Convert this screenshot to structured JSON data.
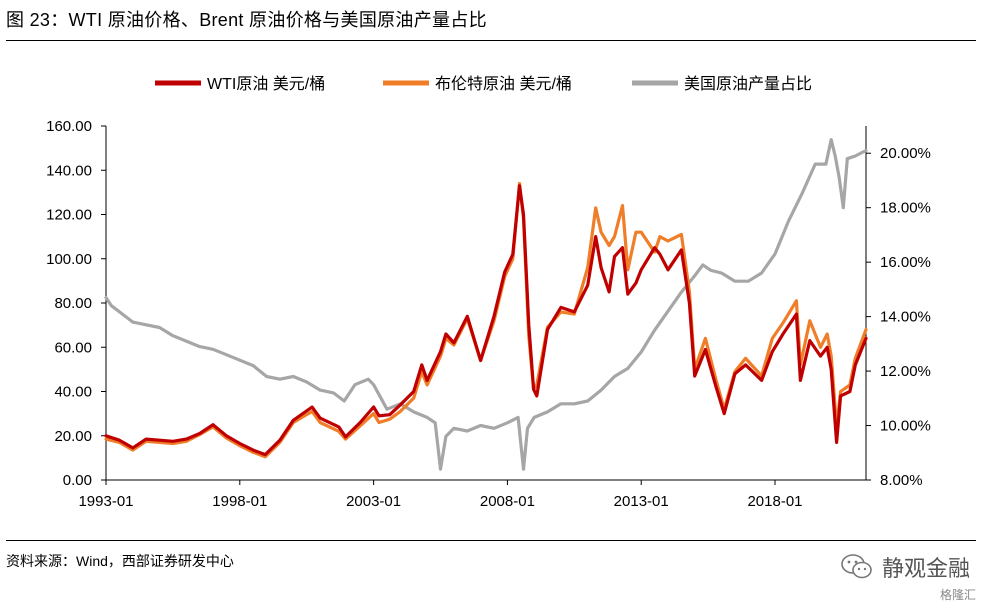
{
  "header": {
    "title": "图 23：WTI 原油价格、Brent 原油价格与美国原油产量占比"
  },
  "footer": {
    "source": "资料来源：Wind，西部证券研发中心",
    "watermark": "静观金融",
    "watermark2": "格隆汇"
  },
  "chart_data": {
    "type": "line",
    "legend_placement": "top",
    "grid": false,
    "x_range": [
      1993.0,
      2021.4
    ],
    "x_ticks": [
      "1993-01",
      "1998-01",
      "2003-01",
      "2008-01",
      "2013-01",
      "2018-01"
    ],
    "y_left": {
      "range": [
        0,
        160
      ],
      "ticks": [
        "0.00",
        "20.00",
        "40.00",
        "60.00",
        "80.00",
        "100.00",
        "120.00",
        "140.00",
        "160.00"
      ]
    },
    "y_right": {
      "range": [
        8,
        21
      ],
      "ticks": [
        "8.00%",
        "10.00%",
        "12.00%",
        "14.00%",
        "16.00%",
        "18.00%",
        "20.00%"
      ]
    },
    "series": [
      {
        "name": "WTI原油 美元/桶",
        "axis": "left",
        "color": "#c00000",
        "points": [
          [
            1993.0,
            20
          ],
          [
            1993.5,
            18
          ],
          [
            1994.0,
            14.5
          ],
          [
            1994.5,
            18.5
          ],
          [
            1995.0,
            18
          ],
          [
            1995.5,
            17.5
          ],
          [
            1996.0,
            18.5
          ],
          [
            1996.5,
            21
          ],
          [
            1997.0,
            25
          ],
          [
            1997.5,
            20
          ],
          [
            1998.0,
            16.5
          ],
          [
            1998.5,
            13.5
          ],
          [
            1998.95,
            11.5
          ],
          [
            1999.5,
            18
          ],
          [
            2000.0,
            27
          ],
          [
            2000.7,
            33
          ],
          [
            2001.0,
            28
          ],
          [
            2001.7,
            24
          ],
          [
            2001.95,
            19.5
          ],
          [
            2002.5,
            26
          ],
          [
            2003.0,
            33
          ],
          [
            2003.2,
            29
          ],
          [
            2003.6,
            29.5
          ],
          [
            2004.0,
            34
          ],
          [
            2004.5,
            40
          ],
          [
            2004.8,
            52
          ],
          [
            2005.0,
            45
          ],
          [
            2005.5,
            58
          ],
          [
            2005.7,
            66
          ],
          [
            2006.0,
            62
          ],
          [
            2006.5,
            74
          ],
          [
            2007.0,
            54
          ],
          [
            2007.5,
            74
          ],
          [
            2007.9,
            94
          ],
          [
            2008.2,
            102
          ],
          [
            2008.45,
            133
          ],
          [
            2008.6,
            120
          ],
          [
            2008.8,
            70
          ],
          [
            2008.98,
            41
          ],
          [
            2009.1,
            38
          ],
          [
            2009.5,
            68
          ],
          [
            2010.0,
            78
          ],
          [
            2010.5,
            76
          ],
          [
            2011.0,
            88
          ],
          [
            2011.3,
            110
          ],
          [
            2011.5,
            96
          ],
          [
            2011.8,
            85
          ],
          [
            2012.0,
            101
          ],
          [
            2012.3,
            105
          ],
          [
            2012.5,
            84
          ],
          [
            2012.8,
            89
          ],
          [
            2013.0,
            95
          ],
          [
            2013.5,
            105
          ],
          [
            2013.7,
            102
          ],
          [
            2014.0,
            95
          ],
          [
            2014.5,
            104
          ],
          [
            2014.8,
            80
          ],
          [
            2015.0,
            47
          ],
          [
            2015.4,
            59
          ],
          [
            2015.8,
            42
          ],
          [
            2016.1,
            30
          ],
          [
            2016.5,
            48
          ],
          [
            2016.9,
            52
          ],
          [
            2017.5,
            45
          ],
          [
            2017.9,
            58
          ],
          [
            2018.3,
            66
          ],
          [
            2018.8,
            75
          ],
          [
            2018.95,
            45
          ],
          [
            2019.3,
            63
          ],
          [
            2019.7,
            56
          ],
          [
            2019.95,
            60
          ],
          [
            2020.1,
            50
          ],
          [
            2020.3,
            17
          ],
          [
            2020.45,
            38
          ],
          [
            2020.8,
            40
          ],
          [
            2021.0,
            52
          ],
          [
            2021.4,
            64
          ]
        ]
      },
      {
        "name": "布伦特原油 美元/桶",
        "axis": "left",
        "color": "#f07d28",
        "points": [
          [
            1993.0,
            18.5
          ],
          [
            1993.5,
            17
          ],
          [
            1994.0,
            13.5
          ],
          [
            1994.5,
            17.5
          ],
          [
            1995.0,
            17
          ],
          [
            1995.5,
            16.5
          ],
          [
            1996.0,
            17.5
          ],
          [
            1996.5,
            20.5
          ],
          [
            1997.0,
            24
          ],
          [
            1997.5,
            19
          ],
          [
            1998.0,
            15.5
          ],
          [
            1998.5,
            12.5
          ],
          [
            1998.95,
            10.5
          ],
          [
            1999.5,
            17
          ],
          [
            2000.0,
            26
          ],
          [
            2000.7,
            31
          ],
          [
            2001.0,
            26
          ],
          [
            2001.7,
            22
          ],
          [
            2001.95,
            18.5
          ],
          [
            2002.5,
            24.5
          ],
          [
            2003.0,
            30
          ],
          [
            2003.2,
            26
          ],
          [
            2003.6,
            27.5
          ],
          [
            2004.0,
            31
          ],
          [
            2004.5,
            37
          ],
          [
            2004.8,
            49
          ],
          [
            2005.0,
            43
          ],
          [
            2005.5,
            56
          ],
          [
            2005.7,
            64
          ],
          [
            2006.0,
            61
          ],
          [
            2006.5,
            73
          ],
          [
            2007.0,
            54
          ],
          [
            2007.5,
            72
          ],
          [
            2007.9,
            92
          ],
          [
            2008.2,
            100
          ],
          [
            2008.45,
            134
          ],
          [
            2008.6,
            118
          ],
          [
            2008.8,
            65
          ],
          [
            2008.98,
            41
          ],
          [
            2009.1,
            43
          ],
          [
            2009.5,
            69
          ],
          [
            2010.0,
            76
          ],
          [
            2010.5,
            75
          ],
          [
            2011.0,
            96
          ],
          [
            2011.3,
            123
          ],
          [
            2011.5,
            112
          ],
          [
            2011.8,
            106
          ],
          [
            2012.0,
            110
          ],
          [
            2012.3,
            124
          ],
          [
            2012.5,
            95
          ],
          [
            2012.8,
            112
          ],
          [
            2013.0,
            112
          ],
          [
            2013.5,
            103
          ],
          [
            2013.7,
            110
          ],
          [
            2014.0,
            108
          ],
          [
            2014.5,
            111
          ],
          [
            2014.8,
            85
          ],
          [
            2015.0,
            50
          ],
          [
            2015.4,
            64
          ],
          [
            2015.8,
            45
          ],
          [
            2016.1,
            32
          ],
          [
            2016.5,
            49
          ],
          [
            2016.9,
            55
          ],
          [
            2017.5,
            47
          ],
          [
            2017.9,
            64
          ],
          [
            2018.3,
            71
          ],
          [
            2018.8,
            81
          ],
          [
            2018.95,
            52
          ],
          [
            2019.3,
            72
          ],
          [
            2019.7,
            60
          ],
          [
            2019.95,
            66
          ],
          [
            2020.1,
            56
          ],
          [
            2020.3,
            24
          ],
          [
            2020.45,
            40
          ],
          [
            2020.8,
            43
          ],
          [
            2021.0,
            55
          ],
          [
            2021.4,
            68
          ]
        ]
      },
      {
        "name": "美国原油产量占比",
        "axis": "right",
        "color": "#a6a6a6",
        "points": [
          [
            1993.0,
            14.7
          ],
          [
            1993.2,
            14.4
          ],
          [
            1993.6,
            14.1
          ],
          [
            1994.0,
            13.8
          ],
          [
            1994.5,
            13.7
          ],
          [
            1995.0,
            13.6
          ],
          [
            1995.5,
            13.3
          ],
          [
            1996.0,
            13.1
          ],
          [
            1996.5,
            12.9
          ],
          [
            1997.0,
            12.8
          ],
          [
            1997.5,
            12.6
          ],
          [
            1998.0,
            12.4
          ],
          [
            1998.5,
            12.2
          ],
          [
            1999.0,
            11.8
          ],
          [
            1999.5,
            11.7
          ],
          [
            2000.0,
            11.8
          ],
          [
            2000.5,
            11.6
          ],
          [
            2001.0,
            11.3
          ],
          [
            2001.5,
            11.2
          ],
          [
            2001.9,
            10.9
          ],
          [
            2002.3,
            11.5
          ],
          [
            2002.8,
            11.7
          ],
          [
            2003.0,
            11.5
          ],
          [
            2003.5,
            10.6
          ],
          [
            2004.0,
            10.8
          ],
          [
            2004.5,
            10.5
          ],
          [
            2005.0,
            10.3
          ],
          [
            2005.3,
            10.1
          ],
          [
            2005.5,
            8.4
          ],
          [
            2005.7,
            9.6
          ],
          [
            2006.0,
            9.9
          ],
          [
            2006.5,
            9.8
          ],
          [
            2007.0,
            10.0
          ],
          [
            2007.5,
            9.9
          ],
          [
            2008.0,
            10.1
          ],
          [
            2008.4,
            10.3
          ],
          [
            2008.6,
            8.4
          ],
          [
            2008.75,
            9.9
          ],
          [
            2009.0,
            10.3
          ],
          [
            2009.5,
            10.5
          ],
          [
            2010.0,
            10.8
          ],
          [
            2010.5,
            10.8
          ],
          [
            2011.0,
            10.9
          ],
          [
            2011.5,
            11.3
          ],
          [
            2012.0,
            11.8
          ],
          [
            2012.5,
            12.1
          ],
          [
            2013.0,
            12.7
          ],
          [
            2013.5,
            13.5
          ],
          [
            2014.0,
            14.2
          ],
          [
            2014.5,
            14.9
          ],
          [
            2015.0,
            15.5
          ],
          [
            2015.3,
            15.9
          ],
          [
            2015.6,
            15.7
          ],
          [
            2016.0,
            15.6
          ],
          [
            2016.5,
            15.3
          ],
          [
            2017.0,
            15.3
          ],
          [
            2017.5,
            15.6
          ],
          [
            2018.0,
            16.3
          ],
          [
            2018.5,
            17.5
          ],
          [
            2019.0,
            18.5
          ],
          [
            2019.5,
            19.6
          ],
          [
            2019.9,
            19.6
          ],
          [
            2020.1,
            20.5
          ],
          [
            2020.25,
            19.9
          ],
          [
            2020.4,
            19.1
          ],
          [
            2020.55,
            18.0
          ],
          [
            2020.7,
            19.8
          ],
          [
            2021.0,
            19.9
          ],
          [
            2021.4,
            20.1
          ]
        ]
      }
    ]
  }
}
